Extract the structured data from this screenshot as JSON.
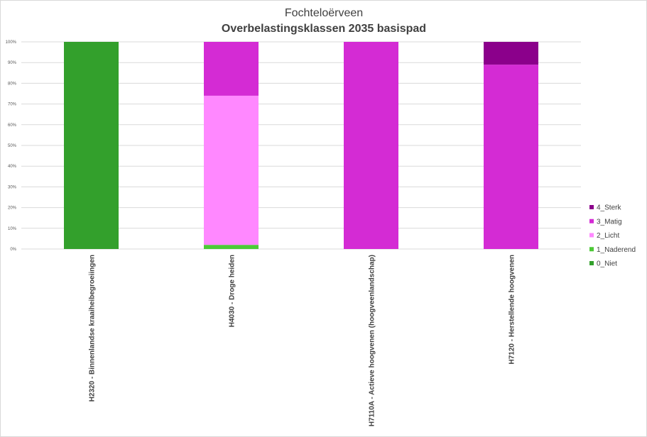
{
  "chart_data": {
    "type": "bar",
    "stacked": true,
    "percent": true,
    "title": "Fochteloërveen",
    "subtitle": "Overbelastingsklassen 2035 basispad",
    "categories": [
      "H2320 - Binnenlandse kraaiheibegroeiingen",
      "H4030 - Droge heiden",
      "H7110A - Actieve hoogvenen (hoogveenlandschap)",
      "H7120 - Herstellende hoogvenen"
    ],
    "series": [
      {
        "name": "0_Niet",
        "color": "#33a02c",
        "values": [
          100,
          0,
          0,
          0
        ]
      },
      {
        "name": "1_Naderend",
        "color": "#4cc936",
        "values": [
          0,
          2,
          0,
          0
        ]
      },
      {
        "name": "2_Licht",
        "color": "#ff88ff",
        "values": [
          0,
          72,
          0,
          0
        ]
      },
      {
        "name": "3_Matig",
        "color": "#d42bd4",
        "values": [
          0,
          26,
          100,
          89
        ]
      },
      {
        "name": "4_Sterk",
        "color": "#8b008b",
        "values": [
          0,
          0,
          0,
          11
        ]
      }
    ],
    "yticks": [
      "0%",
      "10%",
      "20%",
      "30%",
      "40%",
      "50%",
      "60%",
      "70%",
      "80%",
      "90%",
      "100%"
    ],
    "ylim": [
      0,
      100
    ],
    "grid": true,
    "legend_position": "right"
  }
}
